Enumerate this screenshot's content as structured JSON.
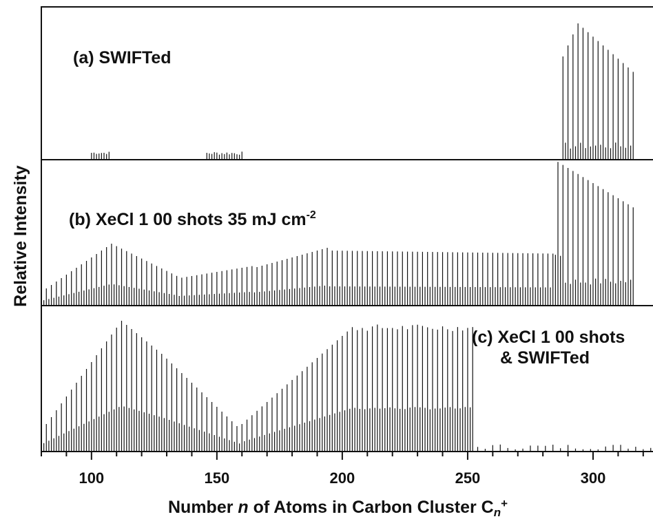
{
  "chart_data": {
    "type": "line",
    "panels": [
      {
        "label": "(a) SWIFTed",
        "note": "",
        "series": [
          {
            "n_start": 100,
            "n_end": 107,
            "peak": 0.06
          },
          {
            "n_start": 146,
            "n_end": 160,
            "peak": 0.06
          },
          {
            "n_start": 288,
            "n_end": 316,
            "peak": 1.0
          }
        ]
      },
      {
        "label": "(b) XeCl 1 00 shots 35 mJ cm",
        "superscript": "-2",
        "series": [
          {
            "n_start": 80,
            "n_end": 316,
            "peak": 1.0
          }
        ]
      },
      {
        "label_line1": "(c) XeCl 1 00 shots",
        "label_line2": "& SWIFTed",
        "series": [
          {
            "n_start": 80,
            "n_end": 252,
            "peak": 1.0
          }
        ]
      }
    ],
    "x_range": [
      80,
      325
    ],
    "x_ticks": [
      100,
      150,
      200,
      250,
      300
    ],
    "xlabel_main": "Number ",
    "xlabel_var": "n",
    "xlabel_rest": " of Atoms in Carbon Cluster C",
    "xlabel_sub": "n",
    "xlabel_sup": "+",
    "ylabel": "Relative Intensity",
    "grid": false,
    "legend": "none"
  }
}
